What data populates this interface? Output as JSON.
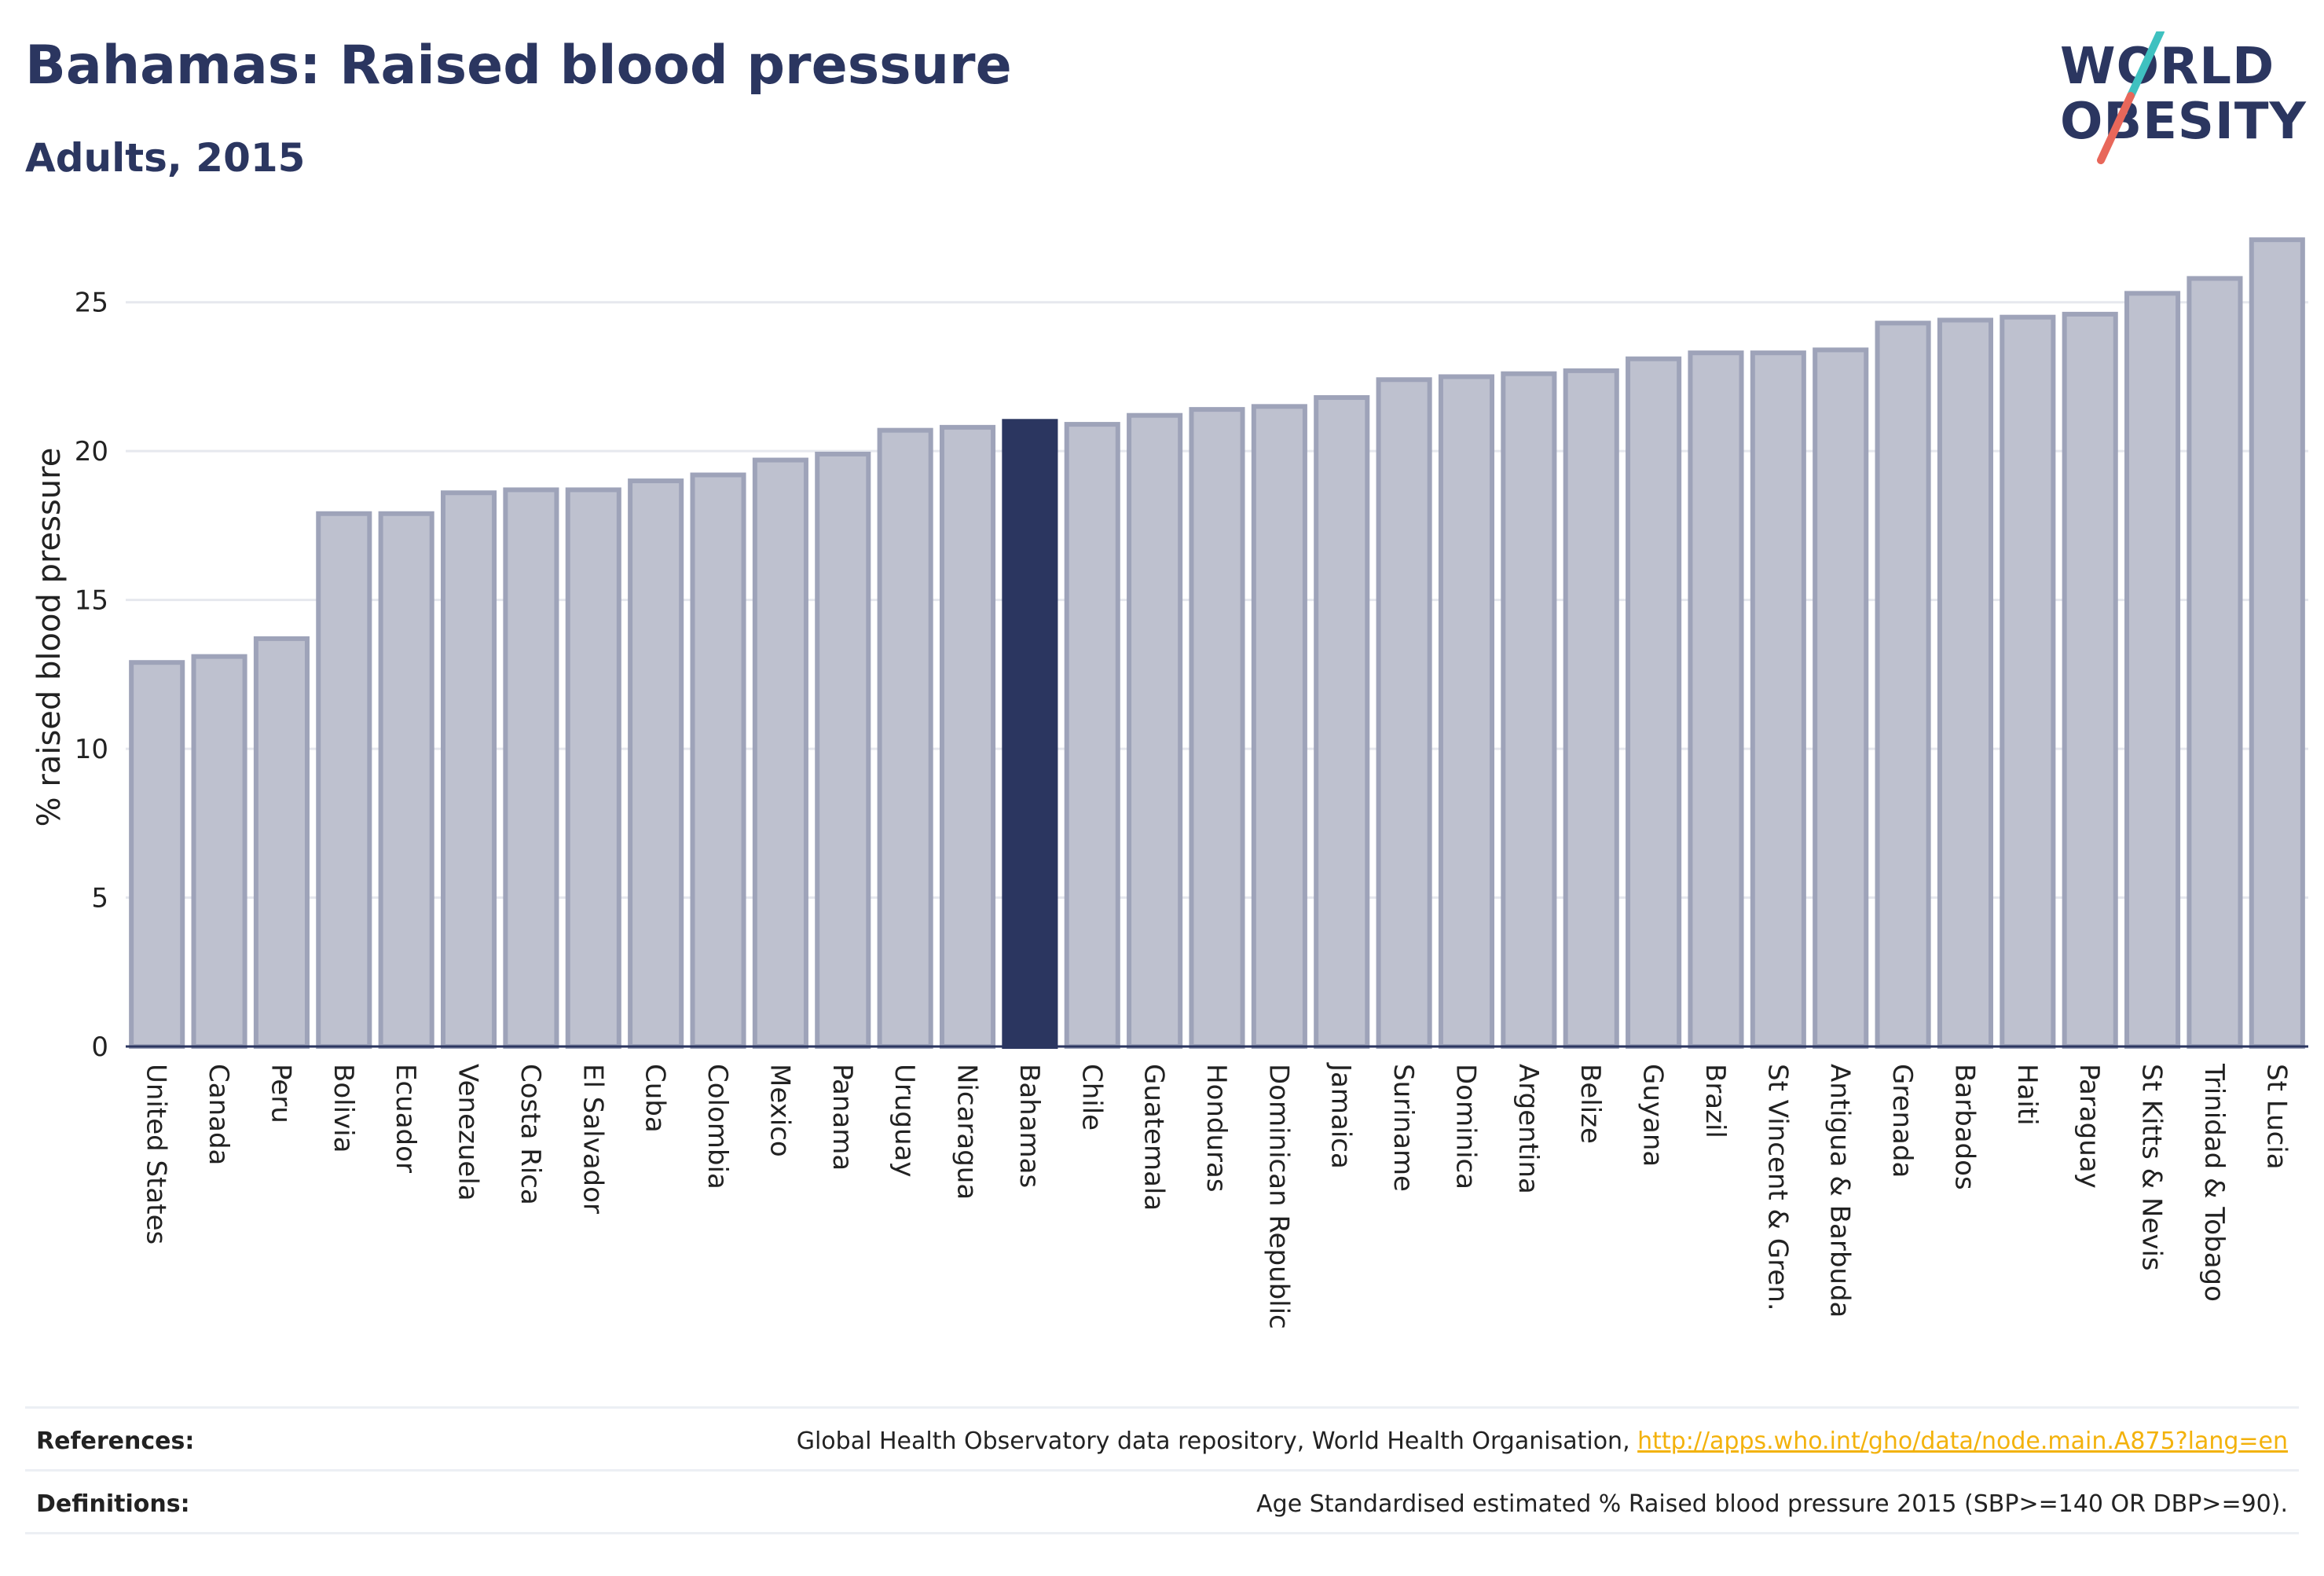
{
  "header": {
    "title": "Bahamas: Raised blood pressure",
    "subtitle": "Adults, 2015"
  },
  "logo": {
    "line1": "WORLD",
    "line2": "OBESITY",
    "colors": {
      "text": "#2b3660",
      "slash_top": "#3fc1c0",
      "slash_bottom": "#e8675a"
    }
  },
  "chart_data": {
    "type": "bar",
    "ylabel": "% raised blood pressure",
    "xlabel": "",
    "ylim": [
      0,
      27.5
    ],
    "yticks": [
      0,
      5,
      10,
      15,
      20,
      25
    ],
    "grid": true,
    "highlight": "Bahamas",
    "colors": {
      "bar": "#bec1cf",
      "bar_edge": "#9ea3b9",
      "highlight": "#2b3660",
      "grid": "#e6e8ee",
      "axis": "#2b3660"
    },
    "categories": [
      "United States",
      "Canada",
      "Peru",
      "Bolivia",
      "Ecuador",
      "Venezuela",
      "Costa Rica",
      "El Salvador",
      "Cuba",
      "Colombia",
      "Mexico",
      "Panama",
      "Uruguay",
      "Nicaragua",
      "Bahamas",
      "Chile",
      "Guatemala",
      "Honduras",
      "Dominican Republic",
      "Jamaica",
      "Suriname",
      "Dominica",
      "Argentina",
      "Belize",
      "Guyana",
      "Brazil",
      "St Vincent & Gren.",
      "Antigua & Barbuda",
      "Grenada",
      "Barbados",
      "Haiti",
      "Paraguay",
      "St Kitts & Nevis",
      "Trinidad & Tobago",
      "St Lucia"
    ],
    "values": [
      12.9,
      13.1,
      13.7,
      17.9,
      17.9,
      18.6,
      18.7,
      18.7,
      19.0,
      19.2,
      19.7,
      19.9,
      20.7,
      20.8,
      21.0,
      20.9,
      21.2,
      21.4,
      21.5,
      21.8,
      22.4,
      22.5,
      22.6,
      22.7,
      23.1,
      23.3,
      23.3,
      23.4,
      24.3,
      24.4,
      24.5,
      24.6,
      25.3,
      25.8,
      27.1
    ]
  },
  "footer": {
    "references_label": "References:",
    "references_text": "Global Health Observatory data repository, World Health Organisation, ",
    "references_link": "http://apps.who.int/gho/data/node.main.A875?lang=en",
    "definitions_label": "Definitions:",
    "definitions_text": "Age Standardised estimated % Raised blood pressure 2015 (SBP>=140 OR DBP>=90)."
  }
}
